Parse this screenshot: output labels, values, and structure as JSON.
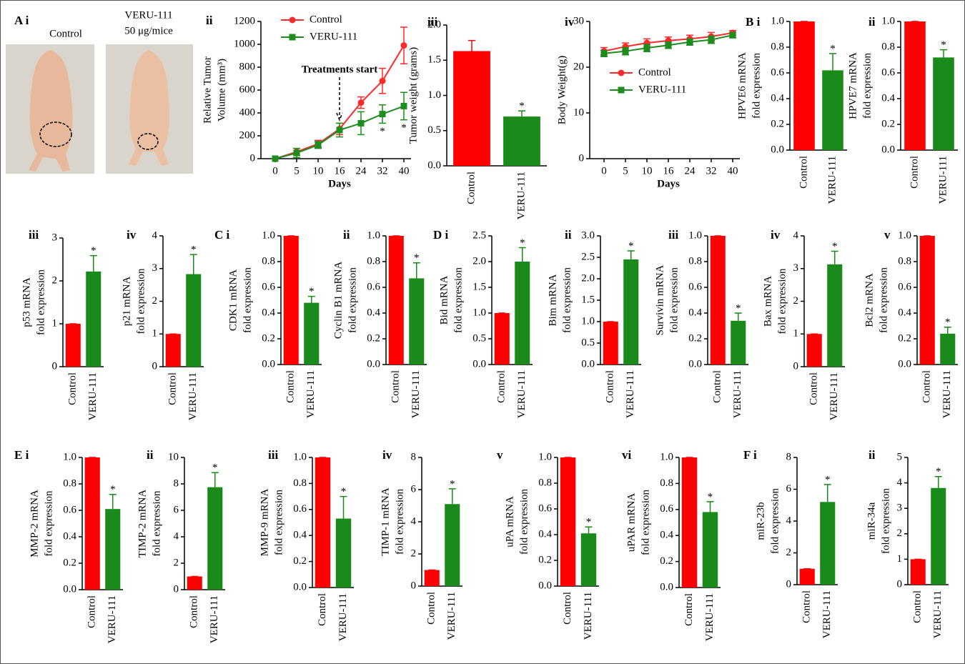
{
  "images": {
    "panel": "A i",
    "labels": [
      "Control",
      "VERU-111",
      "50 μg/mice"
    ]
  },
  "chart_data": [
    {
      "type": "line",
      "panel": "ii",
      "ylabel": [
        "Relative Tumor",
        "Volume (mm³)"
      ],
      "xlabel": "Days",
      "categories": [
        0,
        5,
        10,
        16,
        24,
        32,
        40
      ],
      "series": [
        {
          "name": "Control",
          "color": "#ff2a2a",
          "marker": "circle",
          "values": [
            0,
            60,
            130,
            260,
            490,
            680,
            990
          ],
          "errors": [
            0,
            30,
            30,
            50,
            50,
            110,
            160
          ]
        },
        {
          "name": "VERU-111",
          "color": "#1e8c1e",
          "marker": "square",
          "values": [
            0,
            50,
            120,
            250,
            310,
            390,
            460
          ],
          "errors": [
            0,
            40,
            30,
            60,
            100,
            80,
            120
          ],
          "markers": [
            null,
            null,
            null,
            null,
            null,
            "*",
            "*"
          ]
        }
      ],
      "ylim": [
        0,
        1200
      ],
      "yticks": [
        0,
        200,
        400,
        600,
        800,
        1000,
        1200
      ],
      "legend": "upper-left",
      "annotations": [
        {
          "text": "Treatments   start",
          "x": 16
        }
      ]
    },
    {
      "type": "bar",
      "panel": "iii",
      "ylabel": [
        "Tumor weight (grams)"
      ],
      "categories": [
        "Control",
        "VERU-111"
      ],
      "values": [
        1.63,
        0.7
      ],
      "errors": [
        0.15,
        0.08
      ],
      "colors": [
        "#ff0000",
        "#1a8a1a"
      ],
      "markers": [
        null,
        "*"
      ],
      "ylim": [
        0,
        2
      ],
      "yticks": [
        {
          "value": 0,
          "label": "0.0"
        },
        {
          "value": 0.5,
          "label": "0.5"
        },
        {
          "value": 1,
          "label": "1.0"
        },
        {
          "value": 1.5,
          "label": "1.5"
        },
        {
          "value": 2,
          "label": "2.0"
        }
      ]
    },
    {
      "type": "line",
      "panel": "iv",
      "ylabel": [
        "Body Weight(g)"
      ],
      "xlabel": "Days",
      "categories": [
        0,
        5,
        10,
        16,
        24,
        32,
        40
      ],
      "series": [
        {
          "name": "Control",
          "color": "#ff2a2a",
          "marker": "circle",
          "values": [
            23.5,
            24.5,
            25.3,
            25.8,
            26.2,
            26.7,
            27.5
          ],
          "errors": [
            0.8,
            0.8,
            0.9,
            0.8,
            0.8,
            0.9,
            0.5
          ]
        },
        {
          "name": "VERU-111",
          "color": "#1e8c1e",
          "marker": "square",
          "values": [
            23,
            23.5,
            24.2,
            24.8,
            25.5,
            26,
            27
          ],
          "errors": [
            0.7,
            0.8,
            0.8,
            0.7,
            0.7,
            0.8,
            0.6
          ]
        }
      ],
      "ylim": [
        0,
        30
      ],
      "yticks": [
        0,
        10,
        20,
        30
      ],
      "legend": "center-left"
    },
    {
      "type": "bar",
      "panel": "B  i",
      "ylabel": [
        "HPVE6 mRNA",
        "fold expression"
      ],
      "categories": [
        "Control",
        "VERU-111"
      ],
      "values": [
        1.0,
        0.62
      ],
      "errors": [
        0,
        0.13
      ],
      "colors": [
        "#ff0000",
        "#1a8a1a"
      ],
      "markers": [
        null,
        "*"
      ],
      "ylim": [
        0,
        1
      ],
      "yticks": [
        {
          "value": 0,
          "label": "0.0"
        },
        {
          "value": 0.2,
          "label": "0.2"
        },
        {
          "value": 0.4,
          "label": "0.4"
        },
        {
          "value": 0.6,
          "label": "0.6"
        },
        {
          "value": 0.8,
          "label": "0.8"
        },
        {
          "value": 1,
          "label": "1.0"
        }
      ]
    },
    {
      "type": "bar",
      "panel": "ii",
      "ylabel": [
        "HPVE7 mRNA",
        "fold expression"
      ],
      "categories": [
        "Control",
        "VERU-111"
      ],
      "values": [
        1.0,
        0.72
      ],
      "errors": [
        0,
        0.06
      ],
      "colors": [
        "#ff0000",
        "#1a8a1a"
      ],
      "markers": [
        null,
        "*"
      ],
      "ylim": [
        0,
        1
      ],
      "yticks": [
        {
          "value": 0,
          "label": "0.0"
        },
        {
          "value": 0.2,
          "label": "0.2"
        },
        {
          "value": 0.4,
          "label": "0.4"
        },
        {
          "value": 0.6,
          "label": "0.6"
        },
        {
          "value": 0.8,
          "label": "0.8"
        },
        {
          "value": 1,
          "label": "1.0"
        }
      ]
    },
    {
      "type": "bar",
      "panel": "iii",
      "ylabel": [
        "p53 mRNA",
        "fold expression"
      ],
      "categories": [
        "Control",
        "VERU-111"
      ],
      "values": [
        1,
        2.22
      ],
      "errors": [
        0,
        0.37
      ],
      "colors": [
        "#ff0000",
        "#1a8a1a"
      ],
      "markers": [
        null,
        "*"
      ],
      "ylim": [
        0,
        3
      ],
      "yticks": [
        0,
        1,
        2,
        3
      ]
    },
    {
      "type": "bar",
      "panel": "iv",
      "ylabel": [
        "p21 mRNA",
        "fold expression"
      ],
      "categories": [
        "Control",
        "VERU-111"
      ],
      "values": [
        1,
        2.83
      ],
      "errors": [
        0,
        0.6
      ],
      "colors": [
        "#ff0000",
        "#1a8a1a"
      ],
      "markers": [
        null,
        "*"
      ],
      "ylim": [
        0,
        4
      ],
      "yticks": [
        0,
        1,
        2,
        3,
        4
      ]
    },
    {
      "type": "bar",
      "panel": "C   i",
      "ylabel": [
        "CDK1 mRNA",
        "fold expression"
      ],
      "categories": [
        "Control",
        "VERU-111"
      ],
      "values": [
        1.0,
        0.48
      ],
      "errors": [
        0,
        0.05
      ],
      "colors": [
        "#ff0000",
        "#1a8a1a"
      ],
      "markers": [
        null,
        "*"
      ],
      "ylim": [
        0,
        1
      ],
      "yticks": [
        {
          "value": 0,
          "label": "0.0"
        },
        {
          "value": 0.2,
          "label": "0.2"
        },
        {
          "value": 0.4,
          "label": "0.4"
        },
        {
          "value": 0.6,
          "label": "0.6"
        },
        {
          "value": 0.8,
          "label": "0.8"
        },
        {
          "value": 1,
          "label": "1.0"
        }
      ]
    },
    {
      "type": "bar",
      "panel": "ii",
      "ylabel": [
        "Cyclin B1 mRNA",
        "fold expression"
      ],
      "categories": [
        "Control",
        "VERU-111"
      ],
      "values": [
        1.0,
        0.67
      ],
      "errors": [
        0,
        0.12
      ],
      "colors": [
        "#ff0000",
        "#1a8a1a"
      ],
      "markers": [
        null,
        "*"
      ],
      "ylim": [
        0,
        1
      ],
      "yticks": [
        {
          "value": 0,
          "label": "0.0"
        },
        {
          "value": 0.2,
          "label": "0.2"
        },
        {
          "value": 0.4,
          "label": "0.4"
        },
        {
          "value": 0.6,
          "label": "0.6"
        },
        {
          "value": 0.8,
          "label": "0.8"
        },
        {
          "value": 1,
          "label": "1.0"
        }
      ]
    },
    {
      "type": "bar",
      "panel": "D   i",
      "ylabel": [
        "Bid mRNA",
        "fold expression"
      ],
      "categories": [
        "Control",
        "VERU-111"
      ],
      "values": [
        1.0,
        2.0
      ],
      "errors": [
        0,
        0.27
      ],
      "colors": [
        "#ff0000",
        "#1a8a1a"
      ],
      "markers": [
        null,
        "*"
      ],
      "ylim": [
        0,
        2.5
      ],
      "yticks": [
        {
          "value": 0,
          "label": "0.0"
        },
        {
          "value": 0.5,
          "label": "0.5"
        },
        {
          "value": 1,
          "label": "1.0"
        },
        {
          "value": 1.5,
          "label": "1.5"
        },
        {
          "value": 2,
          "label": "2.0"
        },
        {
          "value": 2.5,
          "label": "2.5"
        }
      ]
    },
    {
      "type": "bar",
      "panel": "ii",
      "ylabel": [
        "Bim mRNA",
        "fold expression"
      ],
      "categories": [
        "Control",
        "VERU-111"
      ],
      "values": [
        1.0,
        2.45
      ],
      "errors": [
        0,
        0.2
      ],
      "colors": [
        "#ff0000",
        "#1a8a1a"
      ],
      "markers": [
        null,
        "*"
      ],
      "ylim": [
        0,
        3
      ],
      "yticks": [
        {
          "value": 0,
          "label": "0.0"
        },
        {
          "value": 0.5,
          "label": "0.5"
        },
        {
          "value": 1,
          "label": "1.0"
        },
        {
          "value": 1.5,
          "label": "1.5"
        },
        {
          "value": 2,
          "label": "2.0"
        },
        {
          "value": 2.5,
          "label": "2.5"
        },
        {
          "value": 3,
          "label": "3.0"
        }
      ]
    },
    {
      "type": "bar",
      "panel": "iii",
      "ylabel": [
        "Survivin mRNA",
        "fold expression"
      ],
      "categories": [
        "Control",
        "VERU-111"
      ],
      "values": [
        1.0,
        0.34
      ],
      "errors": [
        0,
        0.06
      ],
      "colors": [
        "#ff0000",
        "#1a8a1a"
      ],
      "markers": [
        null,
        "*"
      ],
      "ylim": [
        0,
        1
      ],
      "yticks": [
        {
          "value": 0,
          "label": "0.0"
        },
        {
          "value": 0.2,
          "label": "0.2"
        },
        {
          "value": 0.4,
          "label": "0.4"
        },
        {
          "value": 0.6,
          "label": "0.6"
        },
        {
          "value": 0.8,
          "label": "0.8"
        },
        {
          "value": 1,
          "label": "1.0"
        }
      ]
    },
    {
      "type": "bar",
      "panel": "iv",
      "ylabel": [
        "Bax mRNA",
        "fold expression"
      ],
      "categories": [
        "Control",
        "VERU-111"
      ],
      "values": [
        1,
        3.13
      ],
      "errors": [
        0,
        0.4
      ],
      "colors": [
        "#ff0000",
        "#1a8a1a"
      ],
      "markers": [
        null,
        "*"
      ],
      "ylim": [
        0,
        4
      ],
      "yticks": [
        0,
        1,
        2,
        3,
        4
      ]
    },
    {
      "type": "bar",
      "panel": "v",
      "ylabel": [
        "Bcl2 mRNA",
        "fold expression"
      ],
      "categories": [
        "Control",
        "VERU-111"
      ],
      "values": [
        1.0,
        0.24
      ],
      "errors": [
        0,
        0.05
      ],
      "colors": [
        "#ff0000",
        "#1a8a1a"
      ],
      "markers": [
        null,
        "*"
      ],
      "ylim": [
        0,
        1
      ],
      "yticks": [
        {
          "value": 0,
          "label": "0.0"
        },
        {
          "value": 0.2,
          "label": "0.2"
        },
        {
          "value": 0.4,
          "label": "0.4"
        },
        {
          "value": 0.6,
          "label": "0.6"
        },
        {
          "value": 0.8,
          "label": "0.8"
        },
        {
          "value": 1,
          "label": "1.0"
        }
      ]
    },
    {
      "type": "bar",
      "panel": "E  i",
      "ylabel": [
        "MMP-2 mRNA",
        "fold expression"
      ],
      "categories": [
        "Control",
        "VERU-111"
      ],
      "values": [
        1.0,
        0.61
      ],
      "errors": [
        0,
        0.11
      ],
      "colors": [
        "#ff0000",
        "#1a8a1a"
      ],
      "markers": [
        null,
        "*"
      ],
      "ylim": [
        0,
        1
      ],
      "yticks": [
        {
          "value": 0,
          "label": "0.0"
        },
        {
          "value": 0.2,
          "label": "0.2"
        },
        {
          "value": 0.4,
          "label": "0.4"
        },
        {
          "value": 0.6,
          "label": "0.6"
        },
        {
          "value": 0.8,
          "label": "0.8"
        },
        {
          "value": 1,
          "label": "1.0"
        }
      ]
    },
    {
      "type": "bar",
      "panel": "ii",
      "ylabel": [
        "TIMP-2 mRNA",
        "fold expression"
      ],
      "categories": [
        "Control",
        "VERU-111"
      ],
      "values": [
        1,
        7.75
      ],
      "errors": [
        0,
        1.1
      ],
      "colors": [
        "#ff0000",
        "#1a8a1a"
      ],
      "markers": [
        null,
        "*"
      ],
      "ylim": [
        0,
        10
      ],
      "yticks": [
        0,
        2,
        4,
        6,
        8,
        10
      ]
    },
    {
      "type": "bar",
      "panel": "iii",
      "ylabel": [
        "MMP-9 mRNA",
        "fold expression"
      ],
      "categories": [
        "Control",
        "VERU-111"
      ],
      "values": [
        1.0,
        0.53
      ],
      "errors": [
        0,
        0.17
      ],
      "colors": [
        "#ff0000",
        "#1a8a1a"
      ],
      "markers": [
        null,
        "*"
      ],
      "ylim": [
        0,
        1
      ],
      "yticks": [
        {
          "value": 0,
          "label": "0.0"
        },
        {
          "value": 0.2,
          "label": "0.2"
        },
        {
          "value": 0.4,
          "label": "0.4"
        },
        {
          "value": 0.6,
          "label": "0.6"
        },
        {
          "value": 0.8,
          "label": "0.8"
        },
        {
          "value": 1,
          "label": "1.0"
        }
      ]
    },
    {
      "type": "bar",
      "panel": "iv",
      "ylabel": [
        "TIMP-1 mRNA",
        "fold expression"
      ],
      "categories": [
        "Control",
        "VERU-111"
      ],
      "values": [
        1,
        5.1
      ],
      "errors": [
        0,
        0.95
      ],
      "colors": [
        "#ff0000",
        "#1a8a1a"
      ],
      "markers": [
        null,
        "*"
      ],
      "ylim": [
        0,
        8
      ],
      "yticks": [
        0,
        2,
        4,
        6,
        8
      ]
    },
    {
      "type": "bar",
      "panel": "v",
      "ylabel": [
        "uPA mRNA",
        "fold expression"
      ],
      "categories": [
        "Control",
        "VERU-111"
      ],
      "values": [
        1.0,
        0.41
      ],
      "errors": [
        0,
        0.05
      ],
      "colors": [
        "#ff0000",
        "#1a8a1a"
      ],
      "markers": [
        null,
        "*"
      ],
      "ylim": [
        0,
        1
      ],
      "yticks": [
        {
          "value": 0,
          "label": "0.0"
        },
        {
          "value": 0.2,
          "label": "0.2"
        },
        {
          "value": 0.4,
          "label": "0.4"
        },
        {
          "value": 0.6,
          "label": "0.6"
        },
        {
          "value": 0.8,
          "label": "0.8"
        },
        {
          "value": 1,
          "label": "1.0"
        }
      ]
    },
    {
      "type": "bar",
      "panel": "vi",
      "ylabel": [
        "uPAR mRNA",
        "fold expression"
      ],
      "categories": [
        "Control",
        "VERU-111"
      ],
      "values": [
        1.0,
        0.58
      ],
      "errors": [
        0,
        0.08
      ],
      "colors": [
        "#ff0000",
        "#1a8a1a"
      ],
      "markers": [
        null,
        "*"
      ],
      "ylim": [
        0,
        1
      ],
      "yticks": [
        {
          "value": 0,
          "label": "0.0"
        },
        {
          "value": 0.2,
          "label": "0.2"
        },
        {
          "value": 0.4,
          "label": "0.4"
        },
        {
          "value": 0.6,
          "label": "0.6"
        },
        {
          "value": 0.8,
          "label": "0.8"
        },
        {
          "value": 1,
          "label": "1.0"
        }
      ]
    },
    {
      "type": "bar",
      "panel": "F  i",
      "ylabel": [
        "miR-23b",
        "fold expression"
      ],
      "categories": [
        "Control",
        "VERU-111"
      ],
      "values": [
        1,
        5.2
      ],
      "errors": [
        0,
        1.1
      ],
      "colors": [
        "#ff0000",
        "#1a8a1a"
      ],
      "markers": [
        null,
        "*"
      ],
      "ylim": [
        0,
        8
      ],
      "yticks": [
        0,
        2,
        4,
        6,
        8
      ]
    },
    {
      "type": "bar",
      "panel": "ii",
      "ylabel": [
        "miR-34a",
        "fold expression"
      ],
      "categories": [
        "Control",
        "VERU-111"
      ],
      "values": [
        1,
        3.8
      ],
      "errors": [
        0,
        0.45
      ],
      "colors": [
        "#ff0000",
        "#1a8a1a"
      ],
      "markers": [
        null,
        "*"
      ],
      "ylim": [
        0,
        5
      ],
      "yticks": [
        0,
        1,
        2,
        3,
        4,
        5
      ]
    }
  ]
}
